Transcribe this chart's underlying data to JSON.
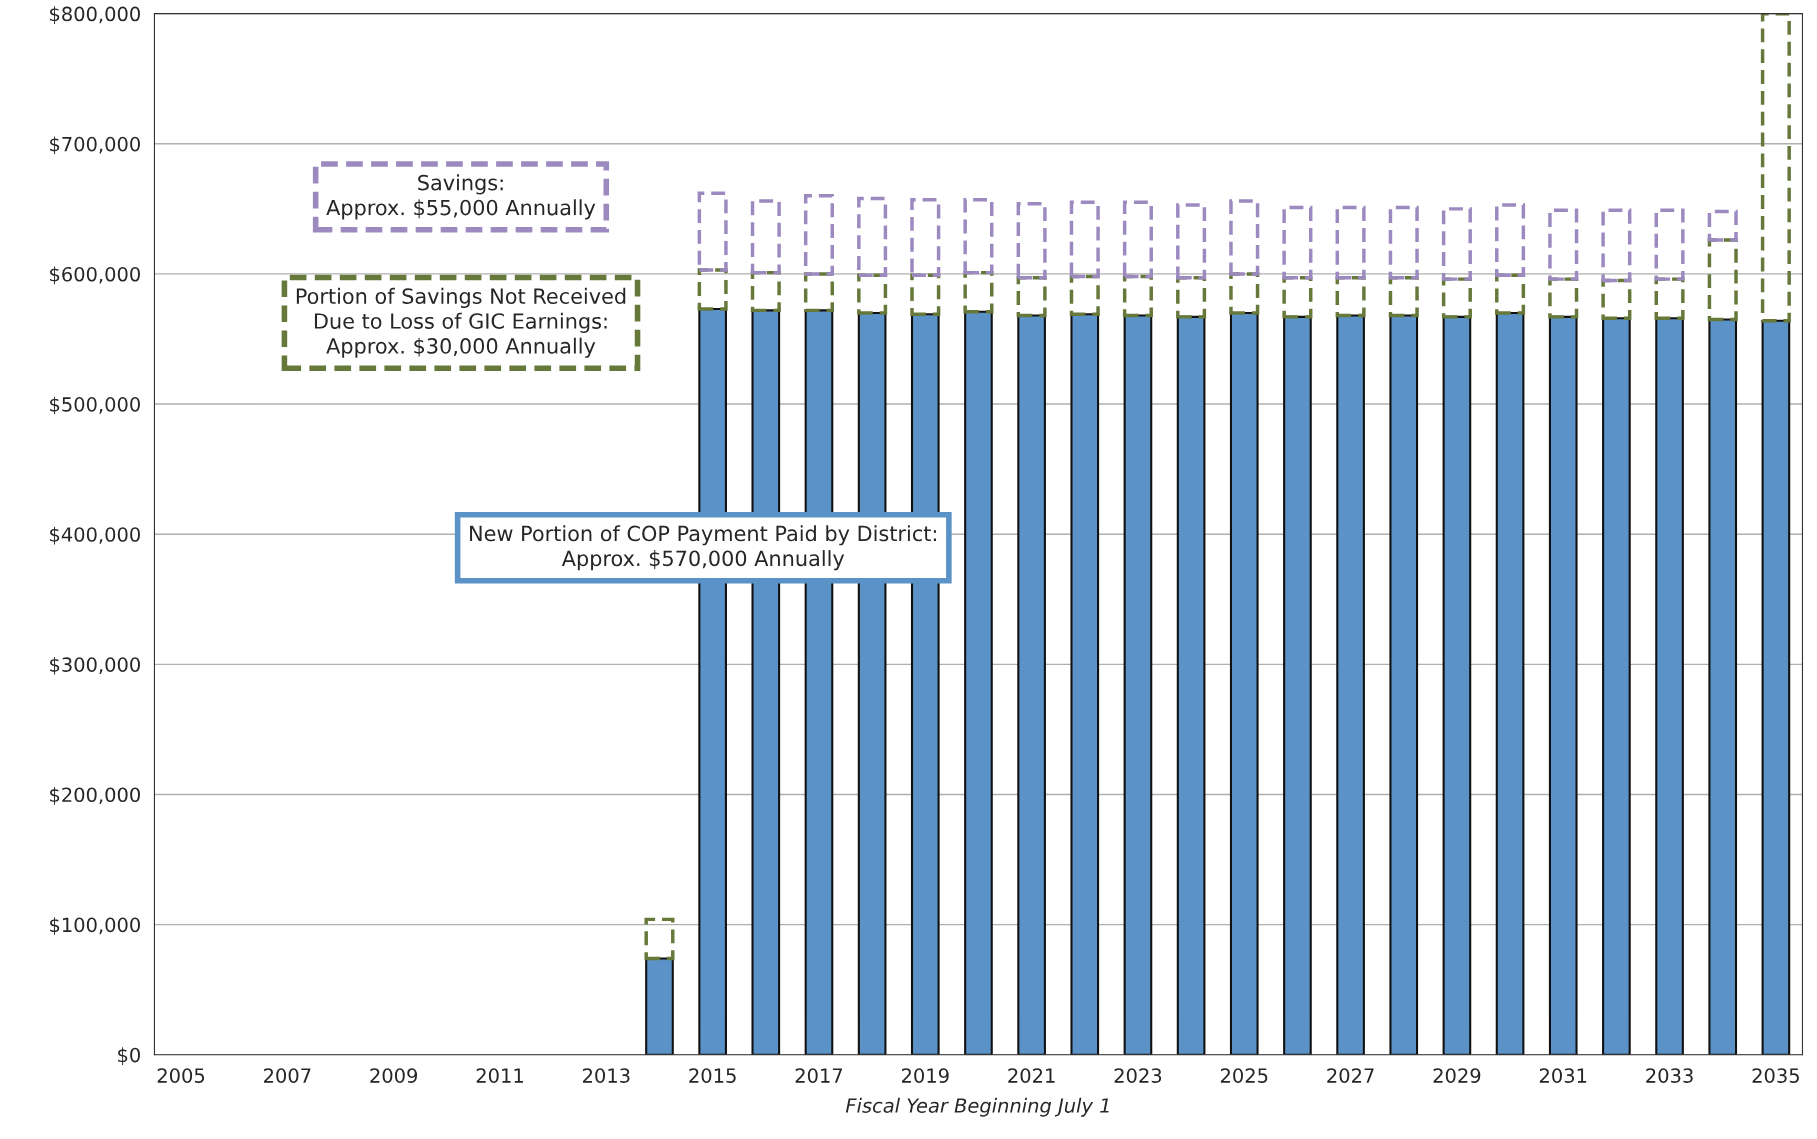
{
  "chart_data": {
    "type": "bar",
    "stacked": true,
    "xlabel": "Fiscal Year Beginning July 1",
    "categories": [
      "2005",
      null,
      "2007",
      null,
      "2009",
      null,
      "2011",
      null,
      "2013",
      null,
      "2015",
      null,
      "2017",
      null,
      "2019",
      null,
      "2021",
      null,
      "2023",
      null,
      "2025",
      null,
      "2027",
      null,
      "2029",
      null,
      "2031",
      null,
      "2033",
      null,
      "2035"
    ],
    "series": [
      {
        "color": "#5b93c8",
        "line_style": "solid",
        "values": [
          null,
          null,
          null,
          null,
          null,
          null,
          null,
          null,
          null,
          74000,
          573000,
          572000,
          572000,
          570000,
          569000,
          571000,
          568000,
          569000,
          568000,
          567000,
          570000,
          567000,
          568000,
          568000,
          567000,
          570000,
          567000,
          566000,
          566000,
          565000,
          564000
        ]
      },
      {
        "color": "#66783a",
        "line_style": "dashed",
        "values": [
          null,
          null,
          null,
          null,
          null,
          null,
          null,
          null,
          null,
          30000,
          30000,
          29000,
          28000,
          29000,
          30000,
          30000,
          29000,
          29000,
          30000,
          30000,
          30000,
          30000,
          29000,
          29000,
          29000,
          29000,
          29000,
          29000,
          30000,
          61000,
          236000
        ]
      },
      {
        "color": "#9b89c0",
        "line_style": "dashed",
        "values": [
          null,
          null,
          null,
          null,
          null,
          null,
          null,
          null,
          null,
          null,
          59000,
          55000,
          60000,
          59000,
          58000,
          56000,
          57000,
          57000,
          57000,
          56000,
          56000,
          54000,
          54000,
          54000,
          54000,
          54000,
          53000,
          54000,
          53000,
          22000,
          null
        ]
      }
    ],
    "ylim": [
      0,
      800000
    ],
    "yticks": [
      {
        "value": 0,
        "label": "$0"
      },
      {
        "value": 100000,
        "label": "$100,000"
      },
      {
        "value": 200000,
        "label": "$200,000"
      },
      {
        "value": 300000,
        "label": "$300,000"
      },
      {
        "value": 400000,
        "label": "$400,000"
      },
      {
        "value": 500000,
        "label": "$500,000"
      },
      {
        "value": 600000,
        "label": "$600,000"
      },
      {
        "value": 700000,
        "label": "$700,000"
      },
      {
        "value": 800000,
        "label": "$800,000"
      }
    ],
    "grid": "y",
    "annotations": [
      "Savings:\nApprox. $55,000 Annually",
      "Portion of Savings Not Received\nDue to Loss of GIC Earnings:\nApprox. $30,000 Annually",
      "New Portion of COP Payment Paid by District:\nApprox. $570,000 Annually"
    ]
  }
}
